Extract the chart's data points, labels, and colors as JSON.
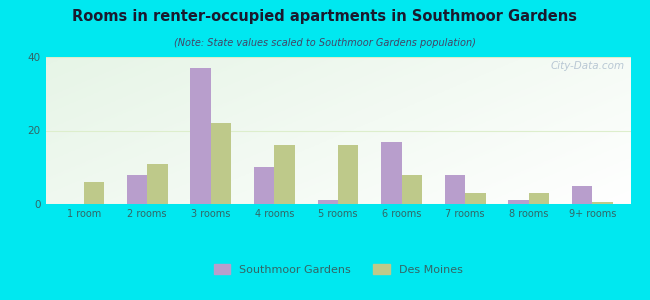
{
  "title": "Rooms in renter-occupied apartments in Southmoor Gardens",
  "subtitle": "(Note: State values scaled to Southmoor Gardens population)",
  "categories": [
    "1 room",
    "2 rooms",
    "3 rooms",
    "4 rooms",
    "5 rooms",
    "6 rooms",
    "7 rooms",
    "8 rooms",
    "9+ rooms"
  ],
  "southmoor": [
    0,
    8,
    37,
    10,
    1,
    17,
    8,
    1,
    5
  ],
  "des_moines": [
    6,
    11,
    22,
    16,
    16,
    8,
    3,
    3,
    0.5
  ],
  "color_southmoor": "#b89ecc",
  "color_des_moines": "#bec98a",
  "bg_outer": "#00e8f0",
  "ylim": [
    0,
    40
  ],
  "yticks": [
    0,
    20,
    40
  ],
  "bar_width": 0.32,
  "legend_southmoor": "Southmoor Gardens",
  "legend_des_moines": "Des Moines",
  "title_color": "#1a1a2e",
  "subtitle_color": "#444466",
  "tick_color": "#336666",
  "grid_color": "#ddeecc",
  "watermark": "City-Data.com"
}
